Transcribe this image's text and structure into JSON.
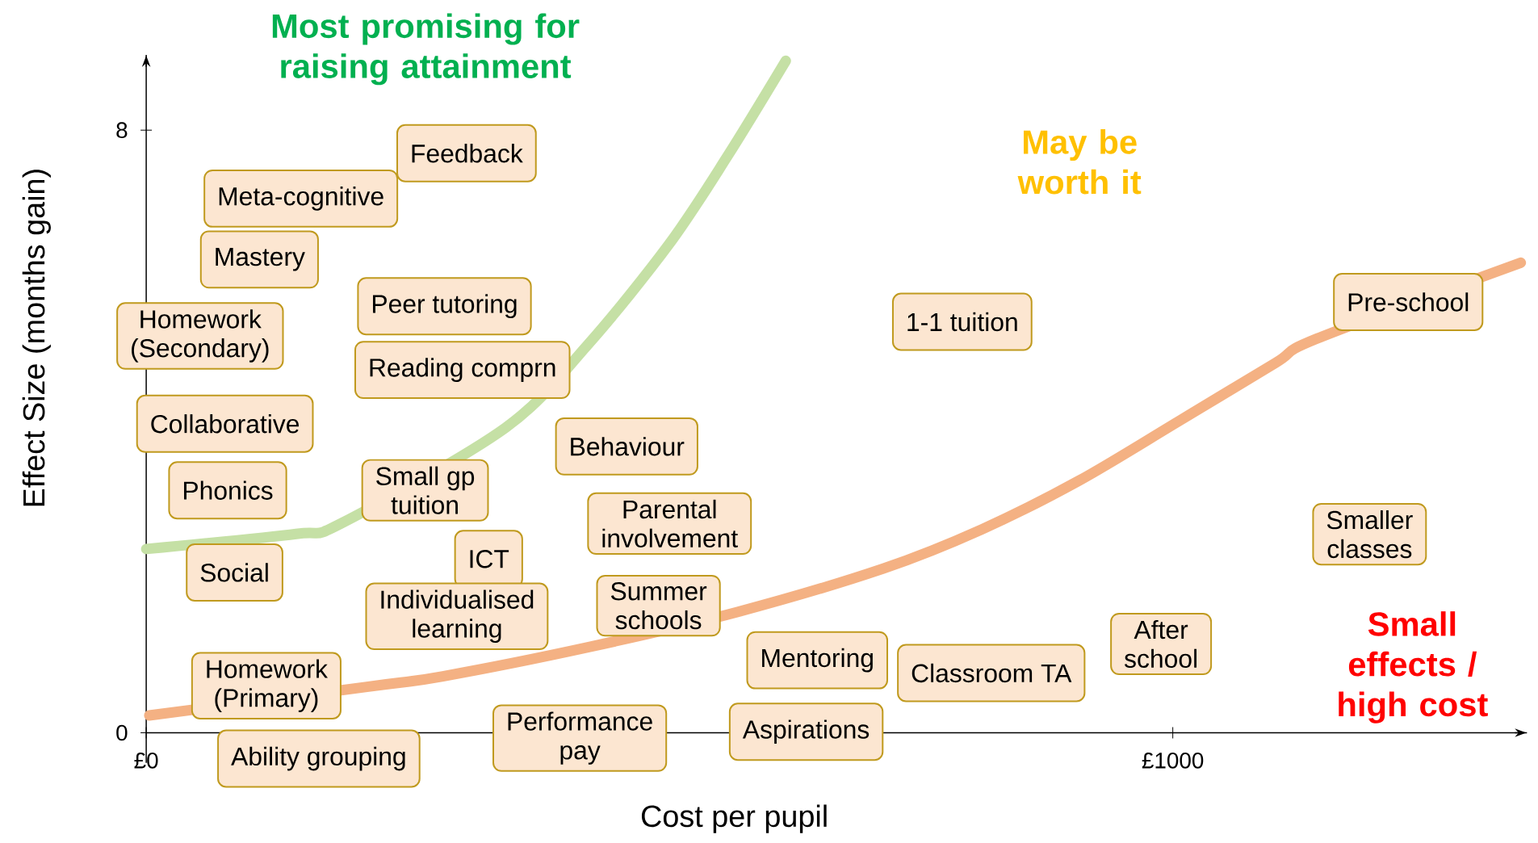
{
  "chart_data": {
    "type": "line",
    "xlabel": "Cost per pupil",
    "ylabel": "Effect Size (months gain)",
    "xlim": [
      0,
      1345
    ],
    "ylim": [
      -0.4,
      9.0
    ],
    "xticks": [
      {
        "value": 0,
        "label": "£0"
      },
      {
        "value": 1000,
        "label": "£1000"
      }
    ],
    "yticks": [
      0,
      8
    ],
    "series": [
      {
        "color": "#c5e0a5",
        "x": [
          0,
          146,
          190,
          350,
          430,
          509,
          566,
          623
        ],
        "values": [
          2.44,
          2.64,
          2.78,
          4.05,
          5.15,
          6.48,
          7.65,
          8.92
        ]
      },
      {
        "color": "#f4b183",
        "x": [
          3,
          215,
          289,
          432,
          575,
          718,
          814,
          909,
          1005,
          1100,
          1140,
          1339
        ],
        "values": [
          0.23,
          0.61,
          0.75,
          1.14,
          1.6,
          2.18,
          2.7,
          3.35,
          4.13,
          4.91,
          5.23,
          6.24
        ]
      }
    ],
    "annotations": [
      "Most promising for raising attainment",
      "May be worth it",
      "Small effects / high cost",
      "Feedback",
      "Meta-cognitive",
      "Mastery",
      "Homework (Secondary)",
      "Peer tutoring",
      "Reading comprn",
      "Collaborative",
      "Behaviour",
      "Phonics",
      "Small gp tuition",
      "Parental involvement",
      "ICT",
      "Social",
      "Individualised learning",
      "Summer schools",
      "Mentoring",
      "Classroom TA",
      "After school",
      "Homework (Primary)",
      "Performance pay",
      "Aspirations",
      "Ability grouping",
      "1-1 tuition",
      "Pre-school",
      "Smaller classes"
    ]
  }
}
